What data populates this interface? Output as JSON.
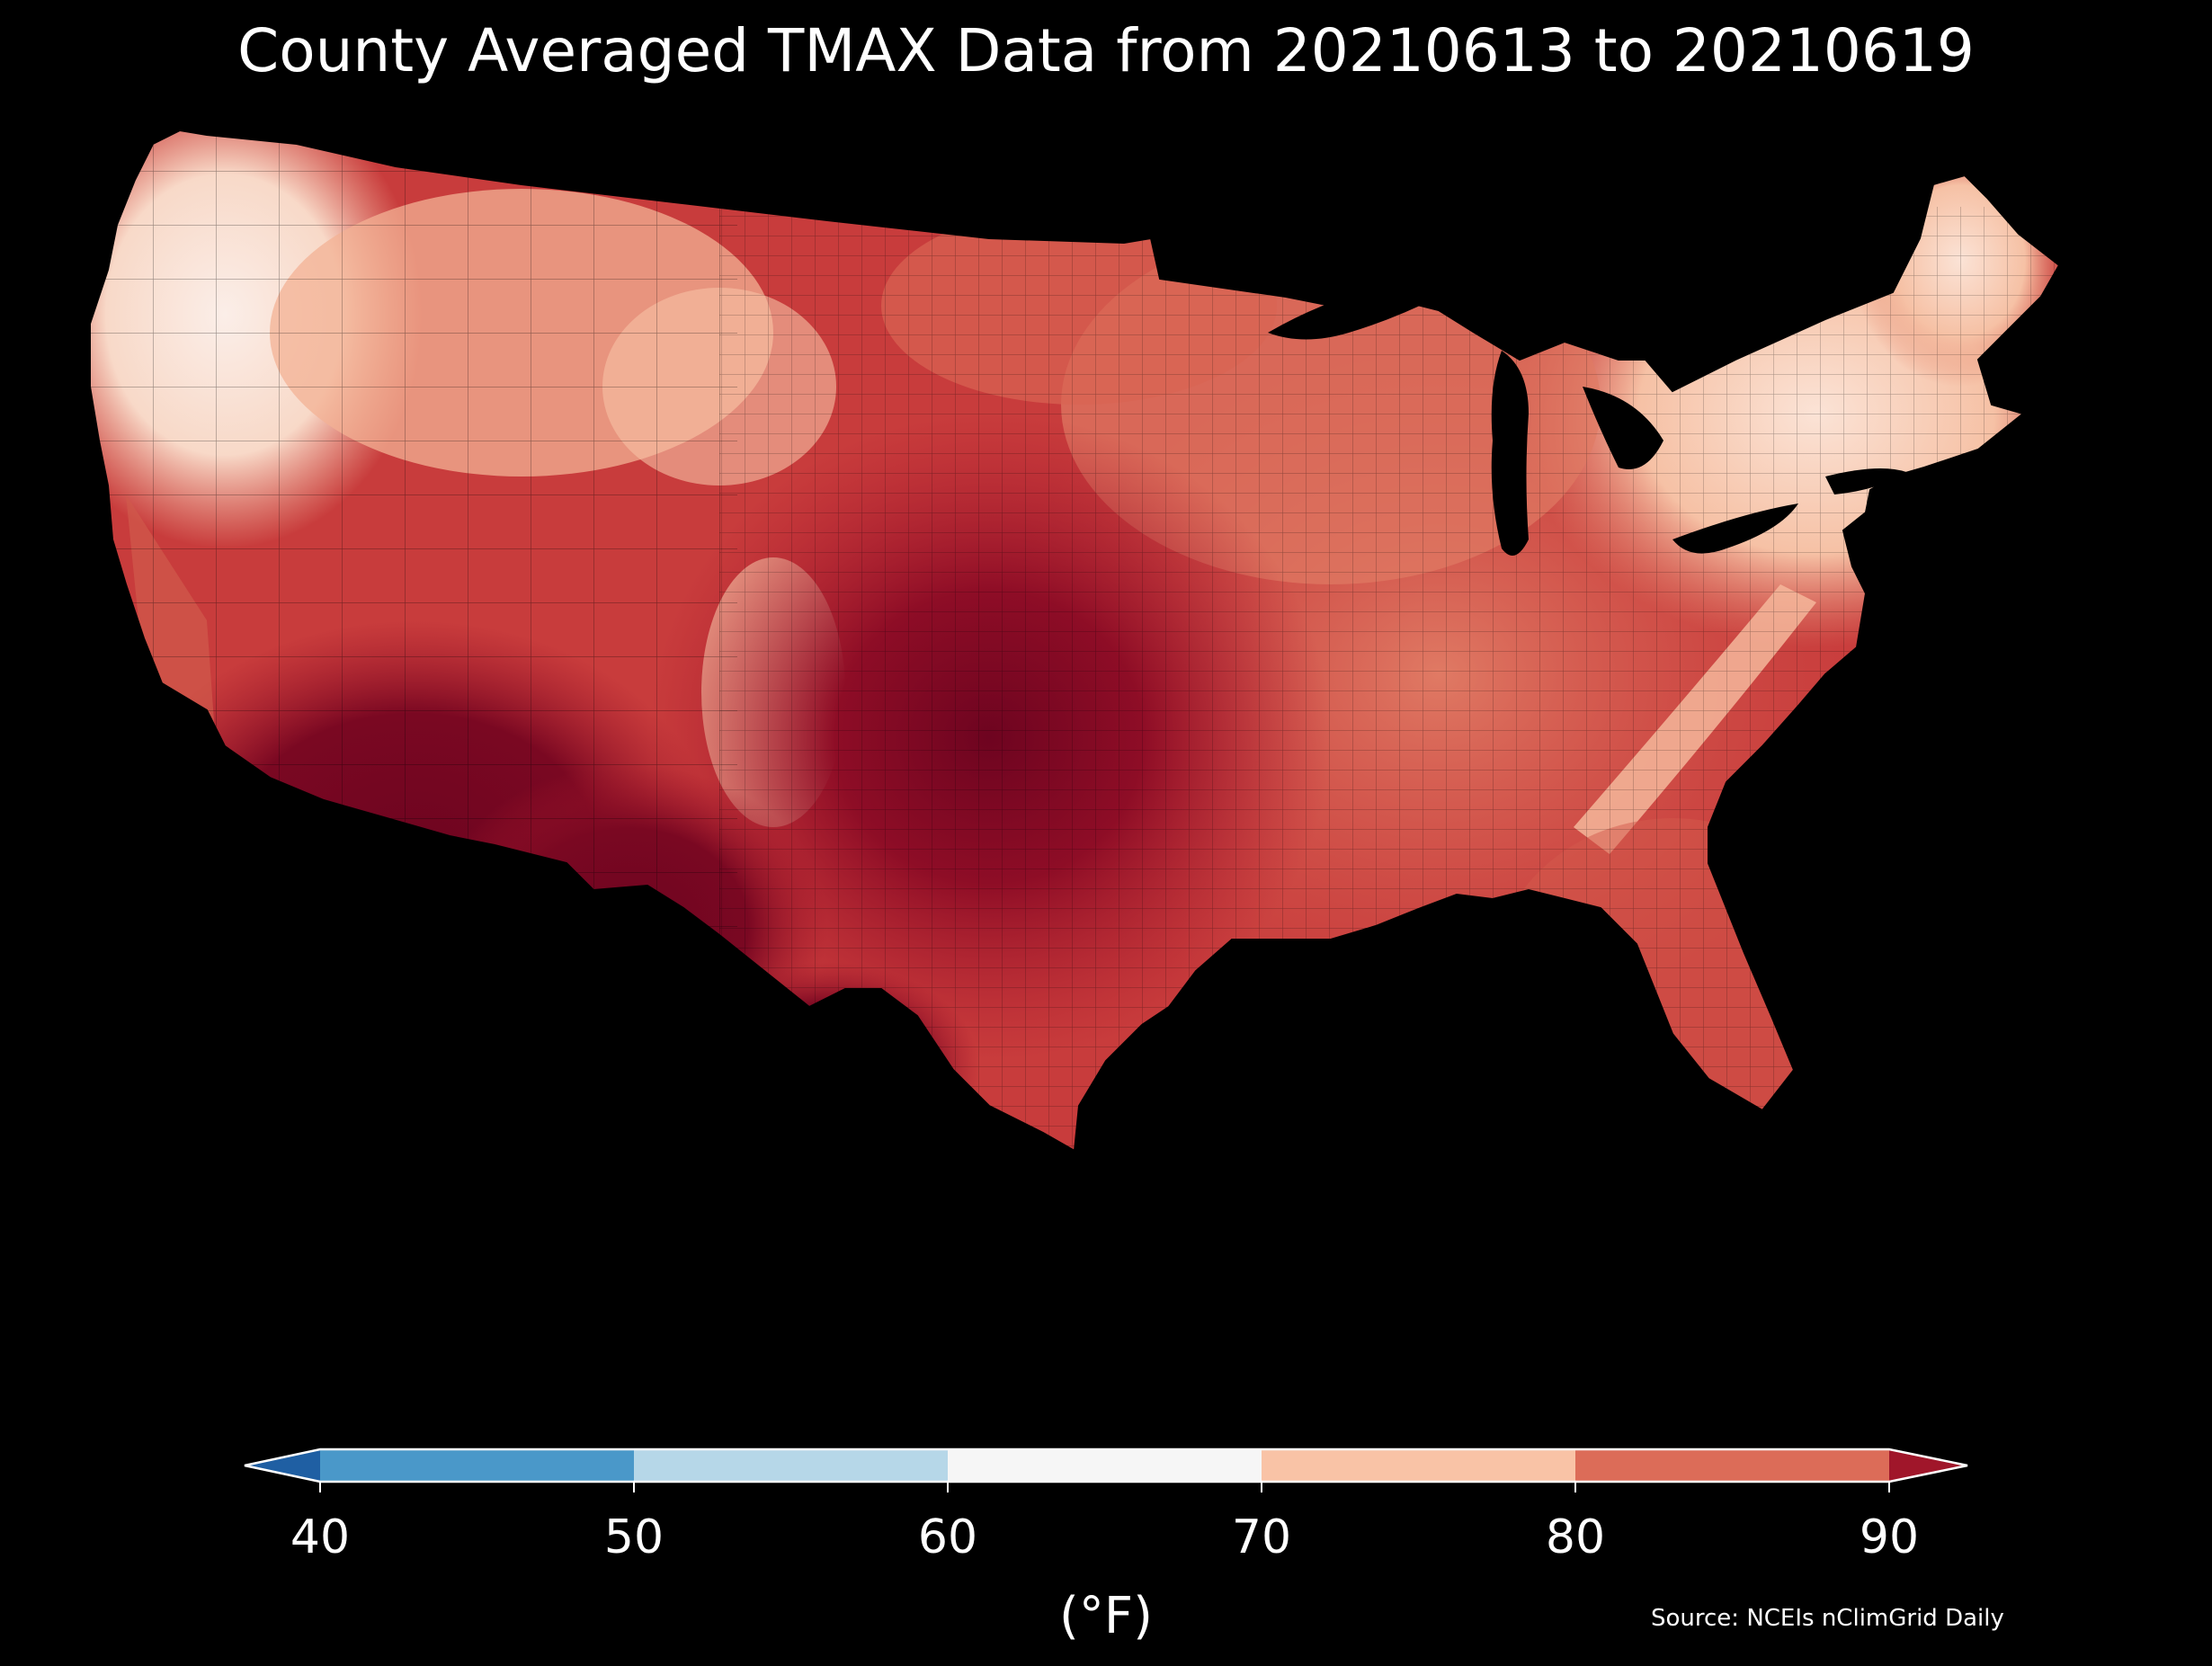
{
  "title": "County Averaged TMAX Data from 20210613 to 20210619",
  "colorbar": {
    "ticks": [
      "40",
      "50",
      "60",
      "70",
      "80",
      "90"
    ],
    "label": "(°F)",
    "bins": [
      {
        "range": "<40",
        "color": "#1f5fa3"
      },
      {
        "range": "40-50",
        "color": "#4a98c9"
      },
      {
        "range": "50-60",
        "color": "#b6d7e8"
      },
      {
        "range": "60-70",
        "color": "#f6f6f6"
      },
      {
        "range": "70-80",
        "color": "#f9c3a6"
      },
      {
        "range": "80-90",
        "color": "#dc6c58"
      },
      {
        "range": ">90",
        "color": "#a0162a"
      }
    ]
  },
  "source": "Source: NCEIs nClimGrid Daily",
  "map_colors": {
    "cool": "#e8f2f8",
    "white": "#fbeee8",
    "light": "#f6c1a5",
    "salmon": "#e58a72",
    "red": "#cf4c44",
    "dark_red": "#b01d2e",
    "darkest": "#6e0420",
    "background": "#000000"
  }
}
